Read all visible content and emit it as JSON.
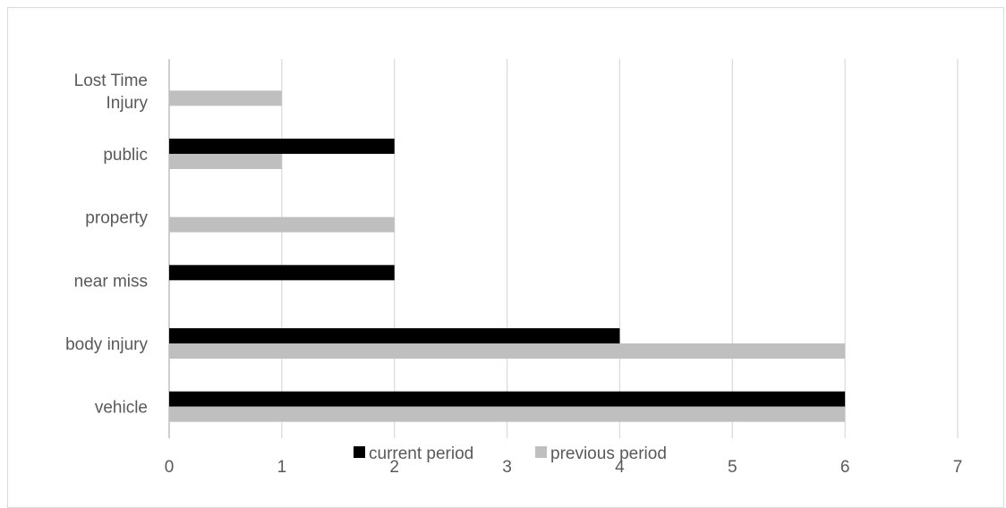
{
  "chart_data": {
    "type": "bar",
    "orientation": "horizontal",
    "categories": [
      "vehicle",
      "body injury",
      "near miss",
      "property",
      "public",
      "Lost Time Injury"
    ],
    "category_lines": [
      [
        "vehicle"
      ],
      [
        "body injury"
      ],
      [
        "near miss"
      ],
      [
        "property"
      ],
      [
        "public"
      ],
      [
        "Lost Time",
        "Injury"
      ]
    ],
    "series": [
      {
        "name": "current period",
        "color": "#000000",
        "values": [
          6,
          4,
          2,
          0,
          2,
          0
        ]
      },
      {
        "name": "previous period",
        "color": "#bfbfbf",
        "values": [
          6,
          6,
          0,
          2,
          1,
          1
        ]
      }
    ],
    "xlim": [
      0,
      7
    ],
    "xticks": [
      "0",
      "1",
      "2",
      "3",
      "4",
      "5",
      "6",
      "7"
    ],
    "grid": true,
    "legend_position": "bottom",
    "title": "",
    "xlabel": "",
    "ylabel": ""
  }
}
